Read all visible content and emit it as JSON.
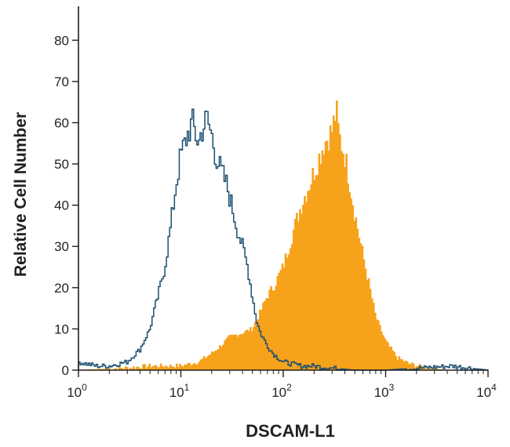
{
  "chart_data": {
    "type": "histogram",
    "x_scale": "log",
    "xlim": [
      1,
      10000
    ],
    "ylim": [
      0,
      85
    ],
    "xlabel": "DSCAM-L1",
    "ylabel": "Relative Cell Number",
    "y_ticks": [
      "0",
      "10",
      "20",
      "30",
      "40",
      "50",
      "60",
      "70",
      "80"
    ],
    "x_ticks": [
      {
        "base": "10",
        "exp": "0"
      },
      {
        "base": "10",
        "exp": "1"
      },
      {
        "base": "10",
        "exp": "2"
      },
      {
        "base": "10",
        "exp": "3"
      },
      {
        "base": "10",
        "exp": "4"
      }
    ],
    "grid": false,
    "legend": "none",
    "series": [
      {
        "style": "outline",
        "color": "#1b4f72",
        "points": [
          [
            1,
            2
          ],
          [
            1.5,
            1
          ],
          [
            2,
            1
          ],
          [
            3,
            2
          ],
          [
            4,
            5
          ],
          [
            5,
            10
          ],
          [
            6,
            18
          ],
          [
            7,
            25
          ],
          [
            8,
            35
          ],
          [
            9,
            45
          ],
          [
            10,
            52
          ],
          [
            11,
            55
          ],
          [
            12,
            58
          ],
          [
            13,
            60
          ],
          [
            14,
            57
          ],
          [
            15,
            55
          ],
          [
            16,
            58
          ],
          [
            18,
            61
          ],
          [
            20,
            57
          ],
          [
            22,
            52
          ],
          [
            25,
            48
          ],
          [
            28,
            45
          ],
          [
            30,
            42
          ],
          [
            35,
            35
          ],
          [
            40,
            30
          ],
          [
            45,
            25
          ],
          [
            50,
            18
          ],
          [
            55,
            12
          ],
          [
            60,
            9
          ],
          [
            70,
            6
          ],
          [
            80,
            4
          ],
          [
            100,
            2
          ],
          [
            150,
            1
          ],
          [
            200,
            1
          ],
          [
            300,
            0.5
          ],
          [
            500,
            0
          ],
          [
            1000,
            0
          ],
          [
            4500,
            1
          ],
          [
            10000,
            0
          ]
        ]
      },
      {
        "style": "filled",
        "color": "#f7a21b",
        "points": [
          [
            1,
            0
          ],
          [
            3,
            0.5
          ],
          [
            5,
            1
          ],
          [
            10,
            1
          ],
          [
            15,
            2
          ],
          [
            20,
            4
          ],
          [
            25,
            6
          ],
          [
            30,
            8
          ],
          [
            40,
            9
          ],
          [
            50,
            10
          ],
          [
            60,
            14
          ],
          [
            70,
            18
          ],
          [
            80,
            20
          ],
          [
            100,
            25
          ],
          [
            120,
            32
          ],
          [
            150,
            40
          ],
          [
            180,
            45
          ],
          [
            200,
            48
          ],
          [
            250,
            55
          ],
          [
            300,
            58
          ],
          [
            330,
            63
          ],
          [
            350,
            57
          ],
          [
            400,
            52
          ],
          [
            450,
            45
          ],
          [
            500,
            38
          ],
          [
            600,
            28
          ],
          [
            700,
            20
          ],
          [
            800,
            13
          ],
          [
            1000,
            7
          ],
          [
            1300,
            3
          ],
          [
            1700,
            1.5
          ],
          [
            2500,
            0.5
          ],
          [
            4000,
            0
          ],
          [
            10000,
            0
          ]
        ]
      }
    ]
  }
}
